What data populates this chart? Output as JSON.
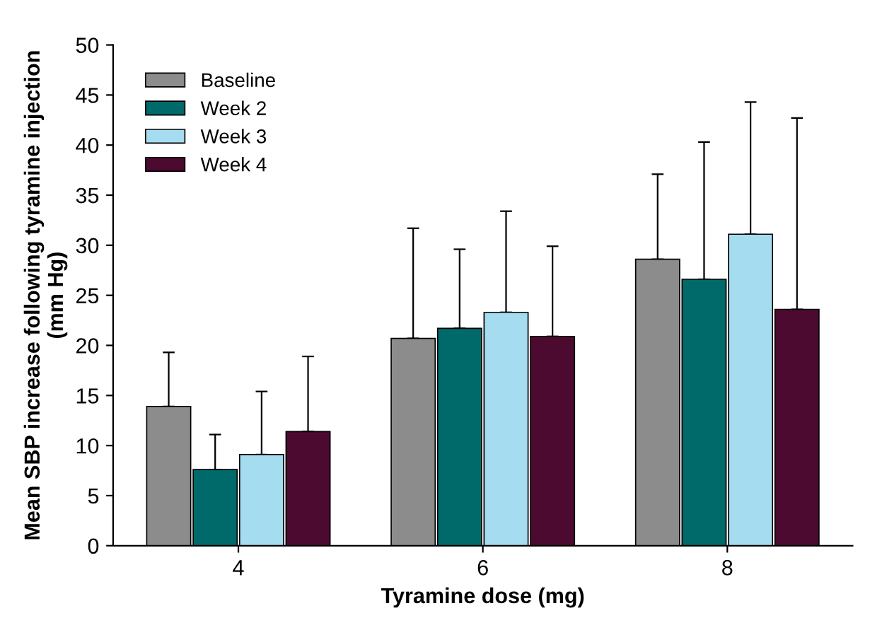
{
  "chart_data": {
    "type": "bar",
    "xlabel": "Tyramine dose (mg)",
    "ylabel": "Mean SBP increase following tyramine injection\n(mm Hg)",
    "categories": [
      "4",
      "6",
      "8"
    ],
    "series": [
      {
        "name": "Baseline",
        "color": "#8c8c8c",
        "values": [
          13.9,
          20.7,
          28.6
        ],
        "errors": [
          [
            13.9,
            19.3
          ],
          [
            20.7,
            31.7
          ],
          [
            28.6,
            37.1
          ]
        ]
      },
      {
        "name": "Week 2",
        "color": "#006a6a",
        "values": [
          7.6,
          21.7,
          26.6
        ],
        "errors": [
          [
            7.6,
            11.1
          ],
          [
            21.7,
            29.6
          ],
          [
            26.6,
            40.3
          ]
        ]
      },
      {
        "name": "Week 3",
        "color": "#a6dcf0",
        "values": [
          9.1,
          23.3,
          31.1
        ],
        "errors": [
          [
            9.1,
            15.4
          ],
          [
            23.3,
            33.4
          ],
          [
            31.1,
            44.3
          ]
        ]
      },
      {
        "name": "Week 4",
        "color": "#4d0a30",
        "values": [
          11.4,
          20.9,
          23.6
        ],
        "errors": [
          [
            11.4,
            18.9
          ],
          [
            20.9,
            29.9
          ],
          [
            23.6,
            42.7
          ]
        ]
      }
    ],
    "ylim": [
      0,
      50
    ],
    "yticks": [
      0,
      5,
      10,
      15,
      20,
      25,
      30,
      35,
      40,
      45,
      50
    ],
    "grid": false,
    "legend": "top left"
  }
}
